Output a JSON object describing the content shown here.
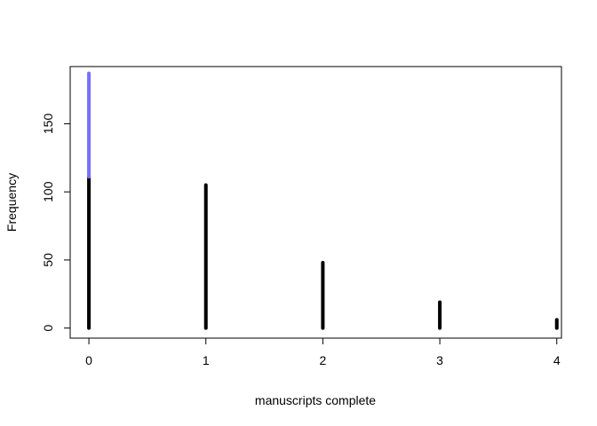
{
  "chart_data": {
    "type": "bar",
    "xlabel": "manuscripts complete",
    "ylabel": "Frequency",
    "x": [
      0,
      1,
      2,
      3,
      4
    ],
    "values": [
      111,
      105,
      48,
      19,
      6
    ],
    "overlay": {
      "x": 0,
      "from": 111,
      "to": 187,
      "color": "#7570ff"
    },
    "bar_color": "#000000",
    "xlim": [
      -0.16,
      4.04
    ],
    "ylim": [
      -7.4,
      192
    ],
    "xticks": [
      0,
      1,
      2,
      3,
      4
    ],
    "yticks": [
      0,
      50,
      100,
      150
    ],
    "grid": false,
    "legend": "none"
  }
}
